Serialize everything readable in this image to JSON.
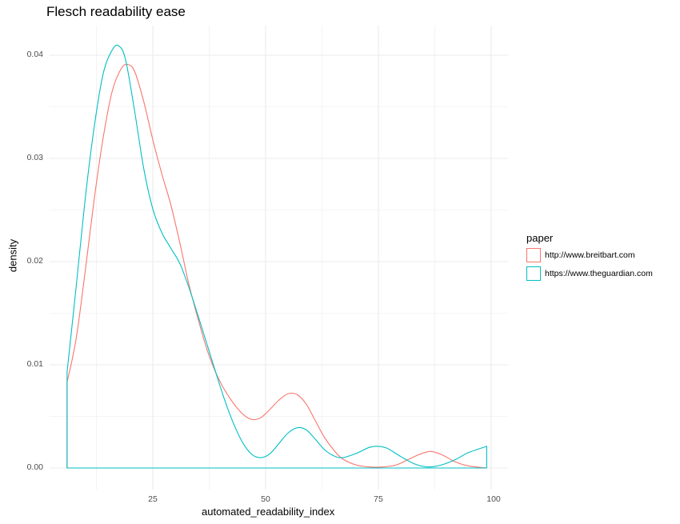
{
  "chart_data": {
    "type": "line",
    "subtype": "density",
    "title": "Flesch readability ease",
    "xlabel": "automated_readability_index",
    "ylabel": "density",
    "xlim": [
      0,
      100
    ],
    "ylim": [
      0,
      0.042
    ],
    "xticks": [
      25,
      50,
      75,
      100
    ],
    "yticks": [
      0.0,
      0.01,
      0.02,
      0.03,
      0.04
    ],
    "ytick_labels": [
      "0.00",
      "0.01",
      "0.02",
      "0.03",
      "0.04"
    ],
    "grid": true,
    "legend_position": "right",
    "legend_title": "paper",
    "series": [
      {
        "name": "http://www.breitbart.com",
        "color": "#F8766D",
        "x": [
          6,
          8,
          10,
          12,
          14,
          16,
          18,
          19.5,
          21,
          23,
          25,
          27,
          29,
          31,
          33,
          35,
          37,
          39,
          41,
          43,
          45,
          47,
          49,
          51,
          53,
          55,
          57,
          59,
          61,
          63,
          65,
          67,
          70,
          73,
          76,
          79,
          82,
          84,
          86.5,
          89,
          92,
          95,
          99
        ],
        "y": [
          0.0083,
          0.0125,
          0.019,
          0.026,
          0.032,
          0.0365,
          0.0387,
          0.0391,
          0.0384,
          0.0355,
          0.0318,
          0.0285,
          0.0255,
          0.0218,
          0.0178,
          0.0145,
          0.0115,
          0.0092,
          0.0075,
          0.0062,
          0.0052,
          0.0047,
          0.0049,
          0.0057,
          0.0066,
          0.0072,
          0.0071,
          0.0062,
          0.0046,
          0.003,
          0.0018,
          0.0009,
          0.0003,
          0.0001,
          0.0001,
          0.0003,
          0.0009,
          0.0013,
          0.0016,
          0.0013,
          0.0006,
          0.0002,
          0.0
        ]
      },
      {
        "name": "https://www.theguardian.com",
        "color": "#00BFC4",
        "x": [
          6,
          8,
          10,
          12,
          14,
          16,
          17.5,
          19,
          21,
          23,
          25,
          27,
          29,
          31,
          33,
          35,
          37,
          39,
          41,
          43,
          45,
          47,
          49,
          51,
          53,
          55,
          57,
          59,
          61,
          63,
          65,
          67,
          70,
          73,
          75,
          77,
          80,
          83,
          86,
          89,
          92,
          95,
          99
        ],
        "y": [
          0.0093,
          0.0175,
          0.026,
          0.033,
          0.0382,
          0.0405,
          0.0409,
          0.0395,
          0.0345,
          0.029,
          0.0251,
          0.0228,
          0.0213,
          0.0198,
          0.0175,
          0.0148,
          0.012,
          0.0092,
          0.0065,
          0.0042,
          0.0024,
          0.0013,
          0.001,
          0.0014,
          0.0024,
          0.0034,
          0.0039,
          0.0037,
          0.0028,
          0.0018,
          0.0012,
          0.001,
          0.0014,
          0.002,
          0.0021,
          0.0019,
          0.0011,
          0.0004,
          0.0001,
          0.0003,
          0.0008,
          0.0015,
          0.0021
        ]
      }
    ]
  },
  "labels": {
    "title": "Flesch readability ease",
    "xlabel": "automated_readability_index",
    "ylabel": "density",
    "legend_title": "paper",
    "legend_items": [
      {
        "label": "http://www.breitbart.com",
        "color": "#F8766D"
      },
      {
        "label": "https://www.theguardian.com",
        "color": "#00BFC4"
      }
    ],
    "xticks": [
      "25",
      "50",
      "75",
      "100"
    ],
    "yticks": [
      "0.00",
      "0.01",
      "0.02",
      "0.03",
      "0.04"
    ]
  }
}
